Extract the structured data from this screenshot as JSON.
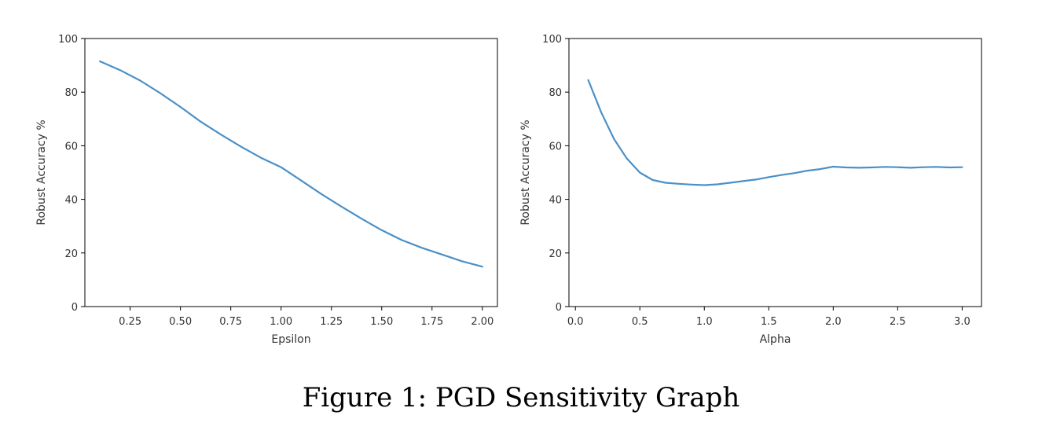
{
  "figure": {
    "caption": "Figure 1: PGD Sensitivity Graph",
    "line_color": "#4a90c8"
  },
  "chart_data": [
    {
      "type": "line",
      "title": "",
      "xlabel": "Epsilon",
      "ylabel": "Robust Accuracy %",
      "xlim": [
        0.025,
        2.075
      ],
      "ylim": [
        0,
        100
      ],
      "x_ticks": [
        0.25,
        0.5,
        0.75,
        1.0,
        1.25,
        1.5,
        1.75,
        2.0
      ],
      "x_tick_labels": [
        "0.25",
        "0.50",
        "0.75",
        "1.00",
        "1.25",
        "1.50",
        "1.75",
        "2.00"
      ],
      "y_ticks": [
        0,
        20,
        40,
        60,
        80,
        100
      ],
      "y_tick_labels": [
        "0",
        "20",
        "40",
        "60",
        "80",
        "100"
      ],
      "grid": false,
      "x": [
        0.1,
        0.2,
        0.3,
        0.4,
        0.5,
        0.6,
        0.7,
        0.8,
        0.9,
        1.0,
        1.1,
        1.2,
        1.3,
        1.4,
        1.5,
        1.6,
        1.7,
        1.8,
        1.9,
        2.0
      ],
      "y": [
        91.5,
        88.2,
        84.3,
        79.6,
        74.5,
        69.0,
        64.2,
        59.7,
        55.5,
        52.0,
        47.0,
        42.0,
        37.3,
        32.8,
        28.5,
        24.8,
        21.9,
        19.4,
        16.9,
        14.9
      ]
    },
    {
      "type": "line",
      "title": "",
      "xlabel": "Alpha",
      "ylabel": "Robust Accuracy %",
      "xlim": [
        -0.05,
        3.15
      ],
      "ylim": [
        0,
        100
      ],
      "x_ticks": [
        0.0,
        0.5,
        1.0,
        1.5,
        2.0,
        2.5,
        3.0
      ],
      "x_tick_labels": [
        "0.0",
        "0.5",
        "1.0",
        "1.5",
        "2.0",
        "2.5",
        "3.0"
      ],
      "y_ticks": [
        0,
        20,
        40,
        60,
        80,
        100
      ],
      "y_tick_labels": [
        "0",
        "20",
        "40",
        "60",
        "80",
        "100"
      ],
      "grid": false,
      "x": [
        0.1,
        0.2,
        0.3,
        0.4,
        0.5,
        0.6,
        0.7,
        0.8,
        0.9,
        1.0,
        1.1,
        1.2,
        1.3,
        1.4,
        1.5,
        1.6,
        1.7,
        1.8,
        1.9,
        2.0,
        2.1,
        2.2,
        2.3,
        2.4,
        2.5,
        2.6,
        2.7,
        2.8,
        2.9,
        3.0
      ],
      "y": [
        84.5,
        72.5,
        62.5,
        55.2,
        50.0,
        47.2,
        46.2,
        45.8,
        45.5,
        45.3,
        45.6,
        46.2,
        46.8,
        47.4,
        48.3,
        49.1,
        49.8,
        50.7,
        51.3,
        52.2,
        51.9,
        51.8,
        51.9,
        52.1,
        52.0,
        51.8,
        52.0,
        52.1,
        51.9,
        52.0
      ]
    }
  ]
}
